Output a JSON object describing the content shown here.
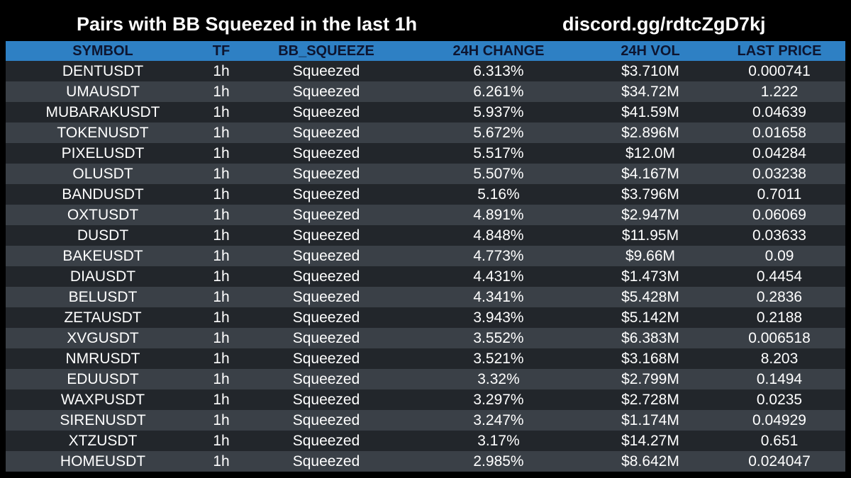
{
  "header": {
    "title": "Pairs with BB Squeezed in the last 1h",
    "link": "discord.gg/rdtcZgD7kj"
  },
  "colors": {
    "background": "#000000",
    "header_row": "#2e80c4",
    "header_text": "#0d1530",
    "row_dark": "#22262b",
    "row_light": "#3a4047",
    "text": "#ffffff"
  },
  "table": {
    "columns": [
      "SYMBOL",
      "TF",
      "BB_SQUEEZE",
      "24H CHANGE",
      "24H VOL",
      "LAST PRICE"
    ],
    "rows": [
      [
        "DENTUSDT",
        "1h",
        "Squeezed",
        "6.313%",
        "$3.710M",
        "0.000741"
      ],
      [
        "UMAUSDT",
        "1h",
        "Squeezed",
        "6.261%",
        "$34.72M",
        "1.222"
      ],
      [
        "MUBARAKUSDT",
        "1h",
        "Squeezed",
        "5.937%",
        "$41.59M",
        "0.04639"
      ],
      [
        "TOKENUSDT",
        "1h",
        "Squeezed",
        "5.672%",
        "$2.896M",
        "0.01658"
      ],
      [
        "PIXELUSDT",
        "1h",
        "Squeezed",
        "5.517%",
        "$12.0M",
        "0.04284"
      ],
      [
        "OLUSDT",
        "1h",
        "Squeezed",
        "5.507%",
        "$4.167M",
        "0.03238"
      ],
      [
        "BANDUSDT",
        "1h",
        "Squeezed",
        "5.16%",
        "$3.796M",
        "0.7011"
      ],
      [
        "OXTUSDT",
        "1h",
        "Squeezed",
        "4.891%",
        "$2.947M",
        "0.06069"
      ],
      [
        "DUSDT",
        "1h",
        "Squeezed",
        "4.848%",
        "$11.95M",
        "0.03633"
      ],
      [
        "BAKEUSDT",
        "1h",
        "Squeezed",
        "4.773%",
        "$9.66M",
        "0.09"
      ],
      [
        "DIAUSDT",
        "1h",
        "Squeezed",
        "4.431%",
        "$1.473M",
        "0.4454"
      ],
      [
        "BELUSDT",
        "1h",
        "Squeezed",
        "4.341%",
        "$5.428M",
        "0.2836"
      ],
      [
        "ZETAUSDT",
        "1h",
        "Squeezed",
        "3.943%",
        "$5.142M",
        "0.2188"
      ],
      [
        "XVGUSDT",
        "1h",
        "Squeezed",
        "3.552%",
        "$6.383M",
        "0.006518"
      ],
      [
        "NMRUSDT",
        "1h",
        "Squeezed",
        "3.521%",
        "$3.168M",
        "8.203"
      ],
      [
        "EDUUSDT",
        "1h",
        "Squeezed",
        "3.32%",
        "$2.799M",
        "0.1494"
      ],
      [
        "WAXPUSDT",
        "1h",
        "Squeezed",
        "3.297%",
        "$2.728M",
        "0.0235"
      ],
      [
        "SIRENUSDT",
        "1h",
        "Squeezed",
        "3.247%",
        "$1.174M",
        "0.04929"
      ],
      [
        "XTZUSDT",
        "1h",
        "Squeezed",
        "3.17%",
        "$14.27M",
        "0.651"
      ],
      [
        "HOMEUSDT",
        "1h",
        "Squeezed",
        "2.985%",
        "$8.642M",
        "0.024047"
      ]
    ]
  }
}
